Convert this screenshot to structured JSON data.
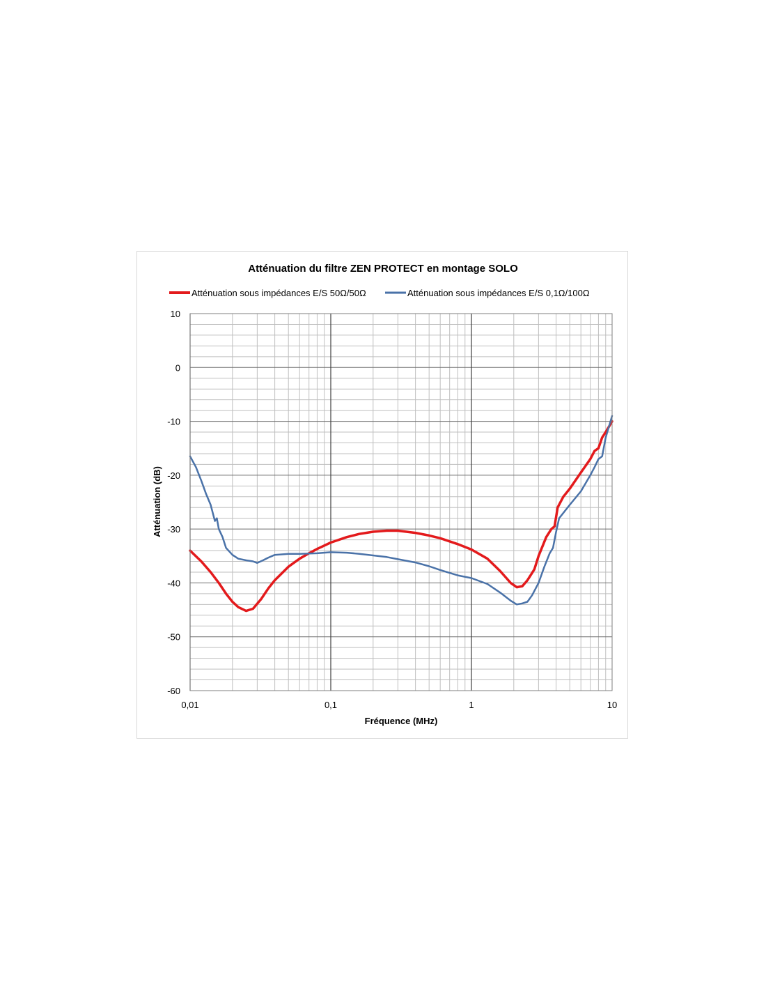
{
  "chart_data": {
    "type": "line",
    "title": "Atténuation du filtre ZEN PROTECT en montage SOLO",
    "xlabel": "Fréquence (MHz)",
    "ylabel": "Atténuation (dB)",
    "x_scale": "log",
    "xlim": [
      0.01,
      10
    ],
    "ylim": [
      -60,
      10
    ],
    "x_ticks": [
      0.01,
      0.1,
      1,
      10
    ],
    "x_tick_labels": [
      "0,01",
      "0,1",
      "1",
      "10"
    ],
    "y_ticks": [
      10,
      0,
      -10,
      -20,
      -30,
      -40,
      -50,
      -60
    ],
    "y_tick_labels": [
      "10",
      "0",
      "-10",
      "-20",
      "-30",
      "-40",
      "-50",
      "-60"
    ],
    "grid": true,
    "legend_position": "top",
    "series": [
      {
        "name": "Atténuation sous impédances E/S 50Ω/50Ω",
        "color": "#e31a1c",
        "x": [
          0.01,
          0.012,
          0.014,
          0.016,
          0.018,
          0.02,
          0.022,
          0.025,
          0.028,
          0.032,
          0.036,
          0.04,
          0.05,
          0.06,
          0.07,
          0.08,
          0.1,
          0.13,
          0.16,
          0.2,
          0.25,
          0.3,
          0.4,
          0.5,
          0.6,
          0.8,
          1,
          1.3,
          1.6,
          1.9,
          2.1,
          2.3,
          2.5,
          2.8,
          3.0,
          3.4,
          3.7,
          3.9,
          4.1,
          4.5,
          5,
          6,
          7,
          7.5,
          8,
          8.5,
          9,
          10
        ],
        "y": [
          -34,
          -36,
          -38,
          -40,
          -42,
          -43.5,
          -44.5,
          -45.2,
          -44.8,
          -43,
          -41,
          -39.5,
          -37,
          -35.5,
          -34.5,
          -33.7,
          -32.5,
          -31.5,
          -30.9,
          -30.5,
          -30.3,
          -30.3,
          -30.7,
          -31.2,
          -31.7,
          -32.8,
          -33.8,
          -35.5,
          -37.8,
          -40,
          -40.8,
          -40.6,
          -39.5,
          -37.5,
          -35,
          -31.5,
          -30,
          -29.5,
          -26,
          -24,
          -22.5,
          -19.5,
          -17,
          -15.5,
          -15,
          -13,
          -12,
          -10
        ]
      },
      {
        "name": "Atténuation sous impédances E/S 0,1Ω/100Ω",
        "color": "#4a72a8",
        "x": [
          0.01,
          0.011,
          0.012,
          0.013,
          0.014,
          0.015,
          0.0155,
          0.016,
          0.017,
          0.018,
          0.02,
          0.022,
          0.025,
          0.028,
          0.03,
          0.033,
          0.036,
          0.04,
          0.05,
          0.06,
          0.08,
          0.1,
          0.13,
          0.16,
          0.2,
          0.25,
          0.3,
          0.4,
          0.5,
          0.6,
          0.8,
          1,
          1.3,
          1.6,
          1.9,
          2.1,
          2.3,
          2.5,
          2.7,
          3.0,
          3.3,
          3.6,
          3.8,
          4.0,
          4.2,
          5,
          6,
          7,
          7.5,
          8,
          8.5,
          9,
          10
        ],
        "y": [
          -16.5,
          -18.5,
          -21,
          -23.5,
          -25.5,
          -28.5,
          -28,
          -30,
          -31.5,
          -33.5,
          -34.8,
          -35.5,
          -35.8,
          -36,
          -36.3,
          -35.8,
          -35.3,
          -34.8,
          -34.6,
          -34.6,
          -34.5,
          -34.3,
          -34.4,
          -34.6,
          -34.9,
          -35.2,
          -35.6,
          -36.2,
          -36.9,
          -37.6,
          -38.6,
          -39.1,
          -40.2,
          -41.8,
          -43.3,
          -44,
          -43.8,
          -43.5,
          -42.3,
          -40,
          -37,
          -34.5,
          -33.5,
          -30.5,
          -28,
          -25.5,
          -23,
          -20,
          -18.5,
          -17,
          -16.5,
          -13,
          -9
        ]
      }
    ]
  }
}
